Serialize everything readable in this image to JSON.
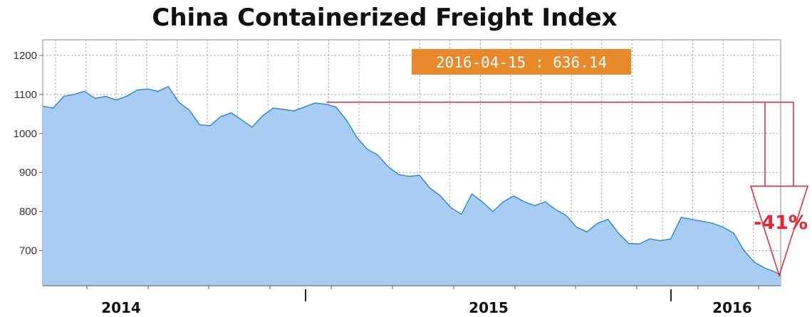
{
  "chart_data": {
    "type": "area",
    "title": "China Containerized Freight Index",
    "xlabel": "",
    "ylabel": "",
    "ylim": [
      610,
      1240
    ],
    "yticks": [
      700,
      800,
      900,
      1000,
      1100,
      1200
    ],
    "x_labels": [
      "2014",
      "2015",
      "2016"
    ],
    "grid": true,
    "legend": "none",
    "colors": {
      "line": "#3b8fd0",
      "fill": "#a9ccf2",
      "grid": "#999999",
      "tooltip_bg": "#e8892c",
      "annotation": "#ee2233"
    },
    "tooltip": {
      "text": "2016-04-15 : 636.14",
      "date": "2016-04-15",
      "value": 636.14
    },
    "annotation": {
      "text": "-41%",
      "from_value": 1080,
      "to_value": 636.14
    },
    "series": [
      {
        "x": [
          "2013-08-02",
          "2013-08-16",
          "2013-08-30",
          "2013-09-13",
          "2013-09-27",
          "2013-10-11",
          "2013-10-25",
          "2013-11-08",
          "2013-11-22",
          "2013-12-06",
          "2013-12-20",
          "2014-01-03",
          "2014-01-17",
          "2014-01-31",
          "2014-02-14",
          "2014-02-28",
          "2014-03-14",
          "2014-03-28",
          "2014-04-11",
          "2014-04-25",
          "2014-05-09",
          "2014-05-23",
          "2014-06-06",
          "2014-06-20",
          "2014-07-04",
          "2014-07-18",
          "2014-08-01",
          "2014-08-15",
          "2014-08-29",
          "2014-09-12",
          "2014-09-26",
          "2014-10-10",
          "2014-10-24",
          "2014-11-07",
          "2014-11-21",
          "2014-12-05",
          "2014-12-19",
          "2015-01-02",
          "2015-01-16",
          "2015-01-30",
          "2015-02-13",
          "2015-02-27",
          "2015-03-13",
          "2015-03-27",
          "2015-04-10",
          "2015-04-24",
          "2015-05-08",
          "2015-05-22",
          "2015-06-05",
          "2015-06-19",
          "2015-07-03",
          "2015-07-17",
          "2015-07-31",
          "2015-08-14",
          "2015-08-28",
          "2015-09-11",
          "2015-09-25",
          "2015-10-09",
          "2015-10-23",
          "2015-11-06",
          "2015-11-20",
          "2015-12-04",
          "2015-12-18",
          "2016-01-01",
          "2016-01-15",
          "2016-01-29",
          "2016-02-12",
          "2016-02-26",
          "2016-03-11",
          "2016-03-25",
          "2016-04-08",
          "2016-04-15"
        ],
        "values": [
          1070,
          1065,
          1095,
          1100,
          1108,
          1090,
          1095,
          1086,
          1095,
          1111,
          1114,
          1108,
          1120,
          1080,
          1060,
          1022,
          1020,
          1043,
          1053,
          1035,
          1016,
          1045,
          1065,
          1062,
          1058,
          1068,
          1078,
          1075,
          1068,
          1035,
          990,
          960,
          945,
          915,
          895,
          890,
          893,
          860,
          840,
          810,
          793,
          845,
          825,
          800,
          825,
          840,
          825,
          815,
          825,
          805,
          790,
          760,
          748,
          770,
          780,
          745,
          718,
          717,
          730,
          725,
          730,
          785,
          780,
          775,
          770,
          760,
          745,
          700,
          670,
          655,
          645,
          636.14
        ]
      }
    ]
  }
}
